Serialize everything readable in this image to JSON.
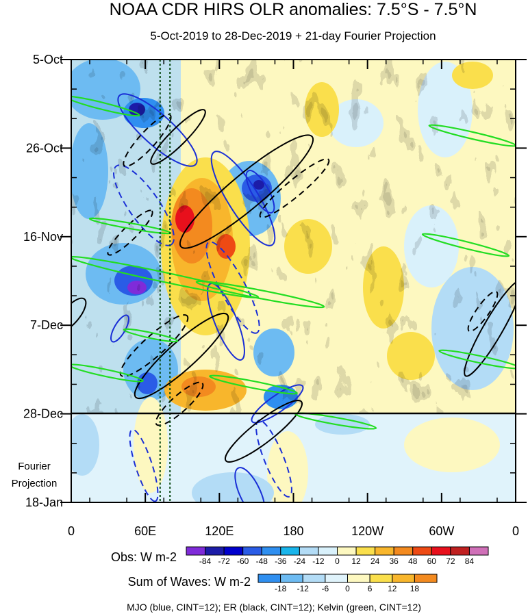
{
  "chart_data": {
    "type": "heatmap",
    "title": "NOAA CDR HIRS OLR anomalies: 7.5°S - 7.5°N",
    "subtitle": "5-Oct-2019 to 28-Dec-2019 + 21-day Fourier Projection",
    "x_axis": {
      "description": "longitude",
      "ticks": [
        "0",
        "60E",
        "120E",
        "180",
        "120W",
        "60W",
        "0"
      ],
      "range": [
        0,
        360
      ]
    },
    "y_axis": {
      "description": "time",
      "ticks": [
        "5-Oct",
        "26-Oct",
        "16-Nov",
        "7-Dec",
        "28-Dec",
        "18-Jan"
      ],
      "observation_end": "28-Dec",
      "projection_label": [
        "Fourier",
        "Projection"
      ]
    },
    "obs_colorbar": {
      "label": "Obs: W m-2",
      "levels": [
        -84,
        -72,
        -60,
        -48,
        -36,
        -24,
        -12,
        0,
        12,
        24,
        36,
        48,
        60,
        72,
        84
      ],
      "colors": [
        "#7f2bd9",
        "#1c1ca8",
        "#0000cd",
        "#2a5ce6",
        "#2f8ff0",
        "#19b5eb",
        "#b3dcf6",
        "#d9f1fb",
        "#fdf8c0",
        "#fadf4c",
        "#f8b62c",
        "#f38a1f",
        "#ee4a14",
        "#e8101c",
        "#c02020",
        "#d070b8"
      ]
    },
    "waves_colorbar": {
      "label": "Sum of Waves: W m-2",
      "levels": [
        -18,
        -12,
        -6,
        0,
        6,
        12,
        18
      ],
      "colors": [
        "#2f8ff0",
        "#6dbbf2",
        "#b3dcf6",
        "#e0f3fb",
        "#fdf8c0",
        "#fadf4c",
        "#f8b62c",
        "#f38a1f"
      ]
    },
    "contour_legend": "MJO (blue, CINT=12); ER (black, CINT=12); Kelvin (green, CINT=12)",
    "series": [
      {
        "name": "MJO",
        "color": "#1a2fd6",
        "cint": 12
      },
      {
        "name": "ER",
        "color": "#000000",
        "cint": 12
      },
      {
        "name": "Kelvin",
        "color": "#22dd22",
        "cint": 12
      }
    ],
    "reference_lines_longitude": [
      72,
      80
    ]
  }
}
